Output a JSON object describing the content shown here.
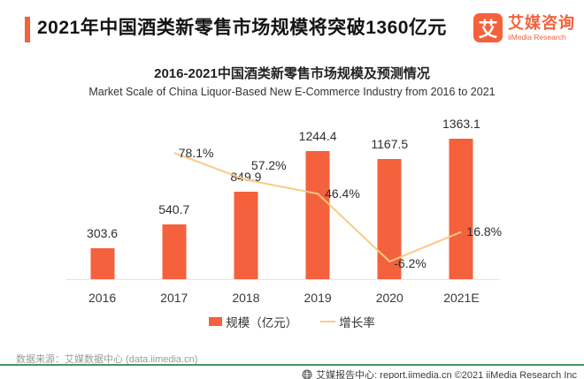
{
  "colors": {
    "accent": "#F4613C",
    "line": "#F8CB84",
    "green": "#4A9363"
  },
  "header": {
    "title": "2021年中国酒类新零售市场规模将突破1360亿元",
    "logo": {
      "mark": "艾",
      "name": "艾媒咨询",
      "tagline": "iiMedia Research"
    }
  },
  "chart": {
    "title_cn": "2016-2021中国酒类新零售市场规模及预测情况",
    "title_en": "Market Scale of China  Liquor-Based New E-Commerce Industry from 2016 to 2021",
    "legend": {
      "bar_label": "规模（亿元）",
      "line_label": "增长率"
    }
  },
  "chart_data": {
    "type": "bar",
    "combo": "bar+line",
    "title": "2016-2021中国酒类新零售市场规模及预测情况",
    "subtitle": "Market Scale of China  Liquor-Based New E-Commerce Industry from 2016 to 2021",
    "categories": [
      "2016",
      "2017",
      "2018",
      "2019",
      "2020",
      "2021E"
    ],
    "series": [
      {
        "name": "规模（亿元）",
        "type": "bar",
        "color": "#F4613C",
        "values": [
          303.6,
          540.7,
          849.9,
          1244.4,
          1167.5,
          1363.1
        ]
      },
      {
        "name": "增长率",
        "type": "line",
        "color": "#F8CB84",
        "unit": "%",
        "values": [
          null,
          78.1,
          57.2,
          46.4,
          -6.2,
          16.8
        ]
      }
    ],
    "value_labels_visible": true,
    "ylim": [
      0,
      1363.1
    ],
    "grid": "off",
    "legend_position": "bottom-center"
  },
  "footnote": {
    "source": "数据来源：艾媒数据中心 (data.iimedia.cn)"
  },
  "footer": {
    "text": "艾媒报告中心: report.iimedia.cn  ©2021  iiMedia Research Inc"
  }
}
